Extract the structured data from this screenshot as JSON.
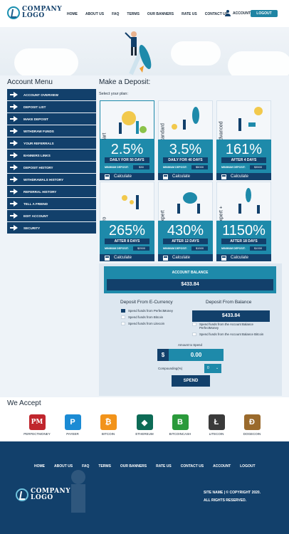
{
  "brand": {
    "line1": "COMPANY",
    "line2": "LOGO"
  },
  "nav": [
    "HOME",
    "ABOUT US",
    "FAQ",
    "TERMS",
    "OUR BANNERS",
    "RATE US",
    "CONTACT US"
  ],
  "header": {
    "account_label": "ACCOUNT",
    "logout_label": "LOGOUT"
  },
  "account_menu": {
    "title": "Account Menu",
    "items": [
      "ACCOUNT OVERVIEW",
      "DEPOSIT LIST",
      "MAKE DEPOSIT",
      "WITHDRAW FUNDS",
      "YOUR REFERRALS",
      "BANNERS LINKS",
      "DEPOSIT HISTORY",
      "WITHDRAWALS HISTORY",
      "REFERRAL HISTORY",
      "TELL A FRIEND",
      "EDIT ACCOUNT",
      "SECURITY"
    ]
  },
  "deposit": {
    "title": "Make a Deposit:",
    "select_label": "Select your plan:",
    "plans": [
      {
        "name": "Start",
        "rate": "2.5%",
        "period": "DAILY FOR 50 DAYS",
        "min_label": "MINIMUM DEPOSIT:",
        "min": "$30",
        "calc": "Calculate"
      },
      {
        "name": "Standard",
        "rate": "3.5%",
        "period": "DAILY FOR 40 DAYS",
        "min_label": "MINIMUM DEPOSIT:",
        "min": "$5000",
        "calc": "Calculate"
      },
      {
        "name": "Advanced",
        "rate": "161%",
        "period": "AFTER 4 DAYS",
        "min_label": "MINIMUM DEPOSIT:",
        "min": "$3500",
        "calc": "Calculate"
      },
      {
        "name": "Pro",
        "rate": "265%",
        "period": "AFTER 8 DAYS",
        "min_label": "MINIMUM DEPOSIT:",
        "min": "$2500",
        "calc": "Calculate"
      },
      {
        "name": "Expert",
        "rate": "430%",
        "period": "AFTER 12 DAYS",
        "min_label": "MINIMUM DEPOSIT:",
        "min": "$1500",
        "calc": "Calculate"
      },
      {
        "name": "Expert +",
        "rate": "1150%",
        "period": "AFTER 18 DAYS",
        "min_label": "MINIMUM DEPOSIT:",
        "min": "$1000",
        "calc": "Calculate"
      }
    ]
  },
  "balance": {
    "title": "ACCOUNT BALANCE",
    "value": "$433.84",
    "ecurrency_title": "Deposit From E-Currency",
    "ecurrency_options": [
      "Spend funds from PerfectMoney",
      "Spend funds from Bitcoin",
      "Spend funds from Litecoin"
    ],
    "from_balance_title": "Deposit From Balance",
    "from_balance_value": "$433.84",
    "balance_options": [
      "Spend funds from the Account Balance PerfectMoney",
      "Spend funds from the Account Balance Bitcoin"
    ],
    "amount_label": "Amount to Spend",
    "currency_symbol": "$",
    "amount_value": "0.00",
    "compounding_label": "Compounding(%)",
    "compounding_value": "0",
    "spend_label": "SPEND"
  },
  "accept": {
    "title": "We Accept",
    "methods": [
      {
        "name": "PERFECTMONEY",
        "symbol": "PM",
        "color": "#c0262d"
      },
      {
        "name": "PAYEER",
        "symbol": "P",
        "color": "#1b8bd4"
      },
      {
        "name": "BITCOIN",
        "symbol": "₿",
        "color": "#f2931a"
      },
      {
        "name": "ETHEREUM",
        "symbol": "◆",
        "color": "#0d6b56"
      },
      {
        "name": "BITCOINCASH",
        "symbol": "B",
        "color": "#2a9a3b"
      },
      {
        "name": "LITECOIN",
        "symbol": "Ł",
        "color": "#3a3a3a"
      },
      {
        "name": "DOGECOIN",
        "symbol": "Đ",
        "color": "#9a6a2c"
      }
    ]
  },
  "footer": {
    "nav": [
      "HOME",
      "ABOUT US",
      "FAQ",
      "TERMS",
      "OUR BANNERS",
      "RATE US",
      "CONTACT US",
      "ACCOUNT",
      "LOGOUT"
    ],
    "copyright_line1": "SITE NAME | © COPYRIGHT 2020.",
    "copyright_line2": "ALL RIGHTS RESERVED."
  }
}
